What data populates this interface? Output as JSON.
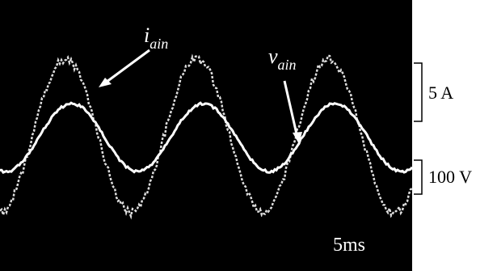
{
  "labels": {
    "current": {
      "symbol": "i",
      "subscript": "ain"
    },
    "voltage": {
      "symbol": "v",
      "subscript": "ain"
    }
  },
  "scale": {
    "current": "5 A",
    "voltage": "100 V",
    "time": "5ms"
  }
}
